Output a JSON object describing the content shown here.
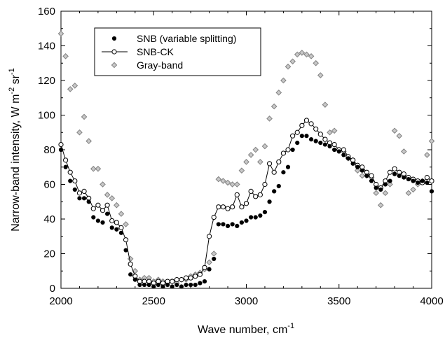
{
  "chart_data": {
    "type": "scatter",
    "title": "",
    "xlabel": {
      "text": "Wave number, cm",
      "sup": "-1"
    },
    "ylabel": {
      "parts": [
        {
          "t": "Narrow-band intensity, W m",
          "sup": false
        },
        {
          "t": "-2",
          "sup": true
        },
        {
          "t": " sr",
          "sup": false
        },
        {
          "t": "-1",
          "sup": true
        }
      ]
    },
    "xlim": [
      2000,
      4000
    ],
    "ylim": [
      0,
      160
    ],
    "xticks": [
      2000,
      2500,
      3000,
      3500,
      4000
    ],
    "yticks": [
      0,
      20,
      40,
      60,
      80,
      100,
      120,
      140,
      160
    ],
    "grid": false,
    "legend_position": "top-left",
    "series": [
      {
        "name": "SNB (variable splitting)",
        "marker": "filled-circle",
        "line": false,
        "color": "#000000",
        "x": [
          2000,
          2025,
          2050,
          2075,
          2100,
          2125,
          2150,
          2175,
          2200,
          2225,
          2250,
          2275,
          2300,
          2325,
          2350,
          2375,
          2400,
          2425,
          2450,
          2475,
          2500,
          2525,
          2550,
          2575,
          2600,
          2625,
          2650,
          2675,
          2700,
          2725,
          2750,
          2775,
          2800,
          2825,
          2850,
          2875,
          2900,
          2925,
          2950,
          2975,
          3000,
          3025,
          3050,
          3075,
          3100,
          3125,
          3150,
          3175,
          3200,
          3225,
          3250,
          3275,
          3300,
          3325,
          3350,
          3375,
          3400,
          3425,
          3450,
          3475,
          3500,
          3525,
          3550,
          3575,
          3600,
          3625,
          3650,
          3675,
          3700,
          3725,
          3750,
          3775,
          3800,
          3825,
          3850,
          3875,
          3900,
          3925,
          3950,
          3975,
          4000
        ],
        "y": [
          80,
          70,
          62,
          57,
          52,
          52,
          50,
          41,
          39,
          38,
          43,
          35,
          34,
          32,
          22,
          8,
          5,
          2,
          2,
          2,
          1,
          2,
          1,
          2,
          1,
          2,
          1,
          2,
          2,
          2,
          3,
          4,
          11,
          17,
          37,
          37,
          36,
          37,
          36,
          38,
          39,
          41,
          41,
          42,
          44,
          50,
          56,
          59,
          67,
          70,
          80,
          84,
          88,
          88,
          86,
          85,
          84,
          83,
          82,
          80,
          79,
          77,
          75,
          72,
          70,
          68,
          65,
          62,
          58,
          57,
          60,
          62,
          66,
          65,
          64,
          63,
          62,
          61,
          62,
          61,
          56
        ]
      },
      {
        "name": "SNB-CK",
        "marker": "open-circle",
        "line": true,
        "color": "#000000",
        "x": [
          2000,
          2025,
          2050,
          2075,
          2100,
          2125,
          2150,
          2175,
          2200,
          2225,
          2250,
          2275,
          2300,
          2325,
          2350,
          2375,
          2400,
          2425,
          2450,
          2475,
          2500,
          2525,
          2550,
          2575,
          2600,
          2625,
          2650,
          2675,
          2700,
          2725,
          2750,
          2775,
          2800,
          2825,
          2850,
          2875,
          2900,
          2925,
          2950,
          2975,
          3000,
          3025,
          3050,
          3075,
          3100,
          3125,
          3150,
          3175,
          3200,
          3225,
          3250,
          3275,
          3300,
          3325,
          3350,
          3375,
          3400,
          3425,
          3450,
          3475,
          3500,
          3525,
          3550,
          3575,
          3600,
          3625,
          3650,
          3675,
          3700,
          3725,
          3750,
          3775,
          3800,
          3825,
          3850,
          3875,
          3900,
          3925,
          3950,
          3975,
          4000
        ],
        "y": [
          83,
          74,
          67,
          62,
          55,
          56,
          52,
          46,
          48,
          45,
          48,
          39,
          38,
          35,
          28,
          14,
          7,
          4,
          4,
          4,
          3,
          4,
          3,
          4,
          4,
          5,
          5,
          6,
          6,
          7,
          8,
          12,
          30,
          41,
          47,
          47,
          46,
          47,
          54,
          47,
          49,
          56,
          53,
          54,
          60,
          72,
          67,
          73,
          78,
          80,
          88,
          90,
          94,
          97,
          95,
          92,
          89,
          86,
          84,
          83,
          80,
          80,
          76,
          74,
          71,
          70,
          67,
          65,
          60,
          58,
          62,
          67,
          69,
          67,
          66,
          64,
          63,
          62,
          61,
          64,
          62
        ]
      },
      {
        "name": "Gray-band",
        "marker": "gray-diamond",
        "line": false,
        "color": "#808080",
        "x": [
          2000,
          2025,
          2050,
          2075,
          2100,
          2125,
          2150,
          2175,
          2200,
          2225,
          2250,
          2275,
          2300,
          2325,
          2350,
          2375,
          2400,
          2425,
          2450,
          2475,
          2500,
          2525,
          2550,
          2575,
          2600,
          2625,
          2650,
          2675,
          2700,
          2725,
          2750,
          2775,
          2800,
          2825,
          2850,
          2875,
          2900,
          2925,
          2950,
          2975,
          3000,
          3025,
          3050,
          3075,
          3100,
          3125,
          3150,
          3175,
          3200,
          3225,
          3250,
          3275,
          3300,
          3325,
          3350,
          3375,
          3400,
          3425,
          3450,
          3475,
          3500,
          3525,
          3550,
          3575,
          3600,
          3625,
          3650,
          3675,
          3700,
          3725,
          3750,
          3775,
          3800,
          3825,
          3850,
          3875,
          3900,
          3925,
          3950,
          3975,
          4000
        ],
        "y": [
          147,
          134,
          115,
          117,
          90,
          99,
          85,
          69,
          69,
          60,
          54,
          52,
          48,
          43,
          37,
          17,
          10,
          5,
          6,
          6,
          4,
          5,
          4,
          3,
          4,
          3,
          5,
          5,
          7,
          8,
          9,
          11,
          15,
          20,
          63,
          62,
          61,
          60,
          60,
          68,
          73,
          77,
          80,
          73,
          82,
          98,
          105,
          113,
          120,
          128,
          131,
          135,
          136,
          135,
          134,
          130,
          123,
          106,
          90,
          91,
          80,
          79,
          75,
          74,
          68,
          65,
          65,
          64,
          55,
          48,
          55,
          60,
          91,
          88,
          79,
          55,
          57,
          60,
          62,
          77,
          85
        ]
      }
    ]
  }
}
